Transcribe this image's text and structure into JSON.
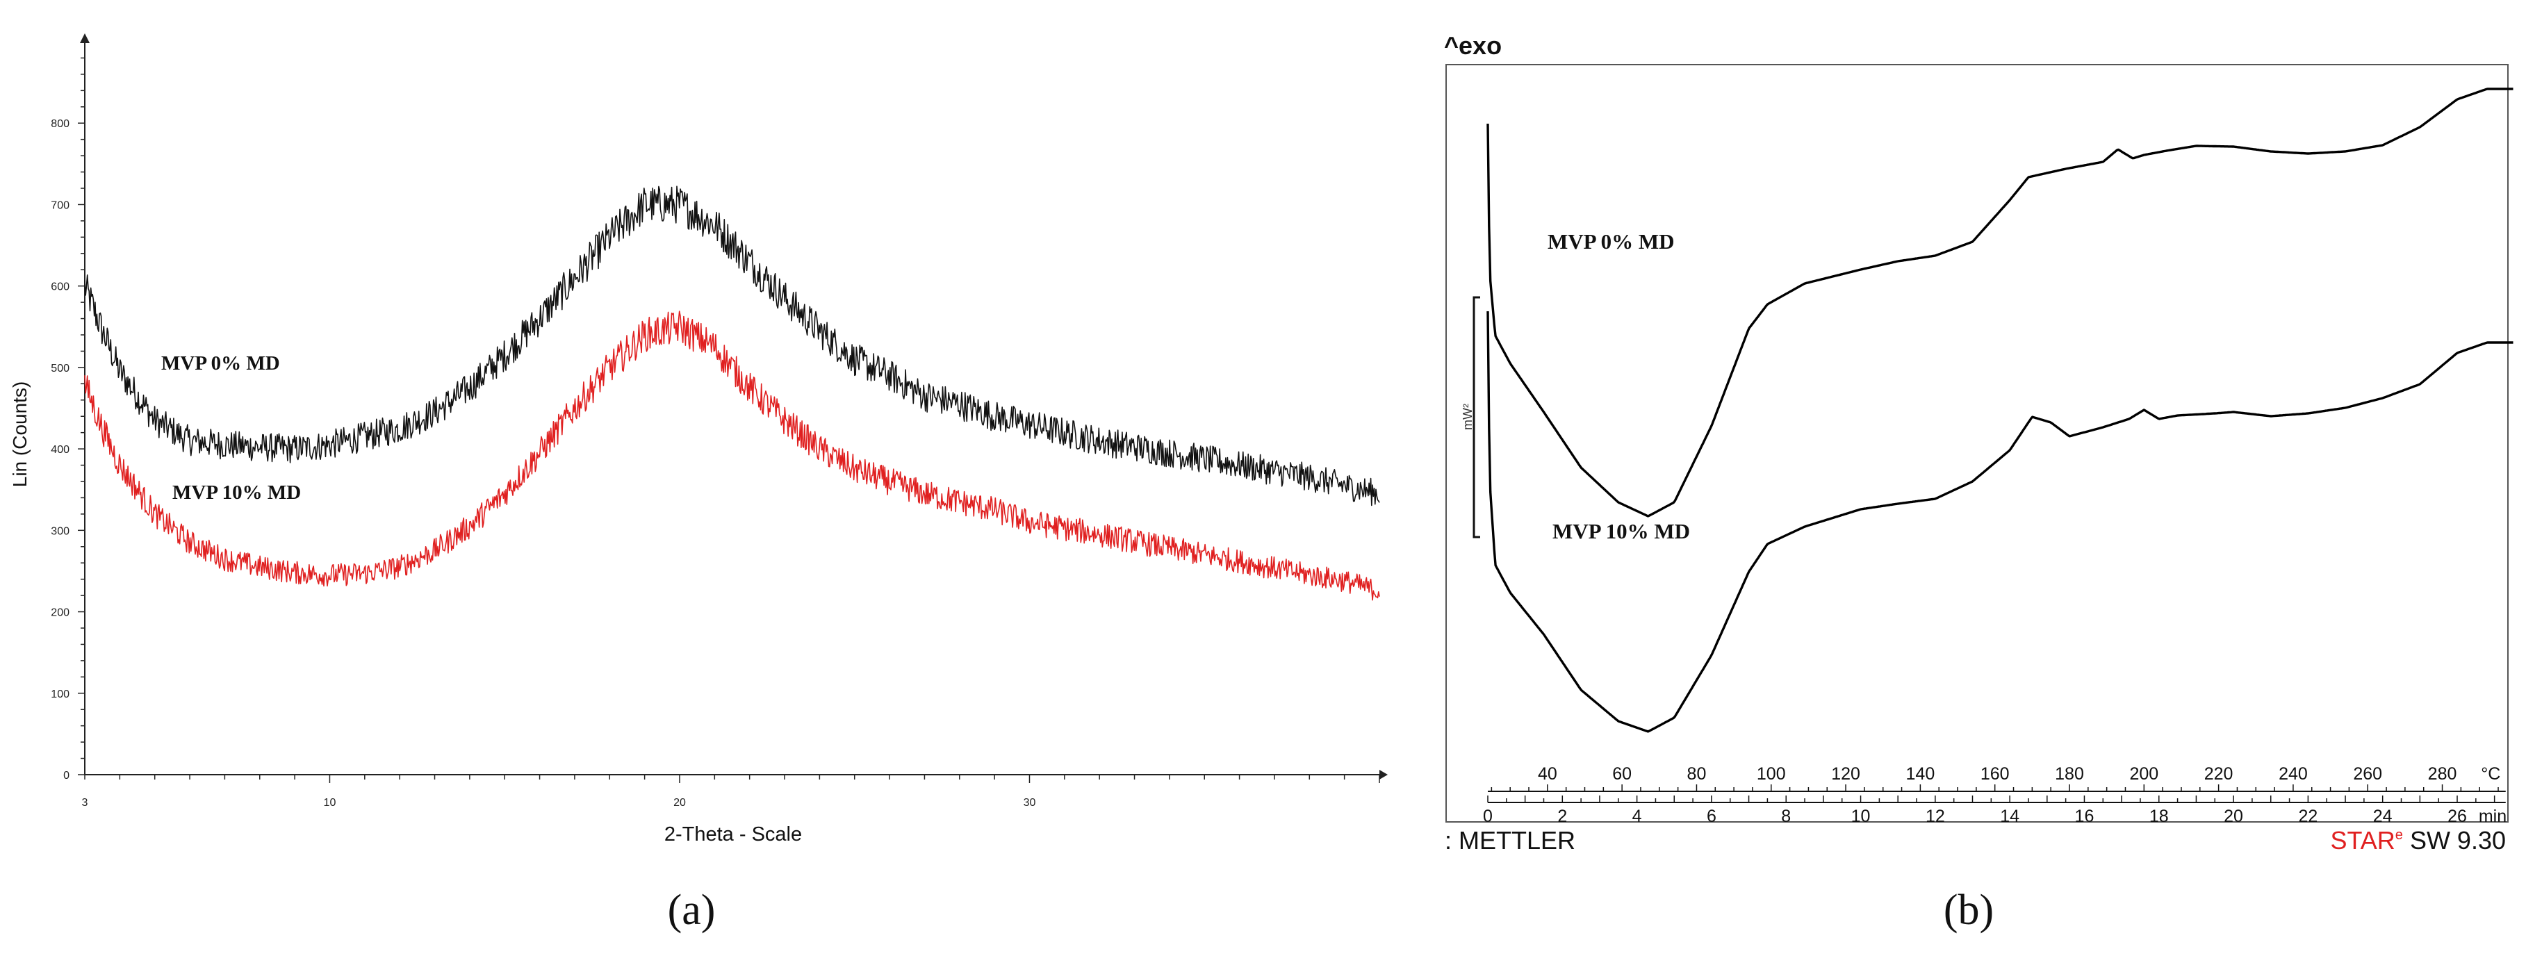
{
  "panels": {
    "a": {
      "caption": "(a)"
    },
    "b": {
      "caption": "(b)"
    }
  },
  "colors": {
    "black_series": "#111111",
    "red_series": "#e02020",
    "axis": "#222222",
    "frame": "#555555"
  },
  "chart_data": [
    {
      "panel": "a",
      "type": "line",
      "xlabel": "2-Theta - Scale",
      "ylabel": "Lin (Counts)",
      "xlim": [
        3,
        40
      ],
      "ylim": [
        0,
        900
      ],
      "xticks": [
        3,
        10,
        20,
        30
      ],
      "yticks": [
        0,
        100,
        200,
        300,
        400,
        500,
        600,
        700,
        800
      ],
      "series_labels": [
        "MVP 0% MD",
        "MVP 10% MD"
      ],
      "series": [
        {
          "name": "MVP 0% MD",
          "color": "#111111",
          "points": [
            [
              3,
              600
            ],
            [
              3.5,
              545
            ],
            [
              4,
              495
            ],
            [
              5,
              435
            ],
            [
              6,
              410
            ],
            [
              7,
              405
            ],
            [
              8,
              402
            ],
            [
              9,
              400
            ],
            [
              10,
              405
            ],
            [
              11,
              415
            ],
            [
              12,
              425
            ],
            [
              13,
              445
            ],
            [
              14,
              475
            ],
            [
              15,
              515
            ],
            [
              16,
              560
            ],
            [
              17,
              610
            ],
            [
              18,
              660
            ],
            [
              19,
              700
            ],
            [
              20,
              700
            ],
            [
              21,
              675
            ],
            [
              22,
              630
            ],
            [
              23,
              585
            ],
            [
              24,
              545
            ],
            [
              25,
              510
            ],
            [
              26,
              490
            ],
            [
              27,
              465
            ],
            [
              28,
              455
            ],
            [
              29,
              440
            ],
            [
              30,
              430
            ],
            [
              32,
              410
            ],
            [
              34,
              395
            ],
            [
              36,
              380
            ],
            [
              38,
              365
            ],
            [
              39,
              355
            ],
            [
              40,
              345
            ]
          ]
        },
        {
          "name": "MVP 10% MD",
          "color": "#e02020",
          "points": [
            [
              3,
              480
            ],
            [
              3.5,
              425
            ],
            [
              4,
              380
            ],
            [
              5,
              320
            ],
            [
              6,
              285
            ],
            [
              7,
              265
            ],
            [
              8,
              255
            ],
            [
              9,
              248
            ],
            [
              10,
              245
            ],
            [
              11,
              247
            ],
            [
              12,
              255
            ],
            [
              13,
              275
            ],
            [
              14,
              305
            ],
            [
              15,
              345
            ],
            [
              16,
              395
            ],
            [
              17,
              450
            ],
            [
              18,
              500
            ],
            [
              19,
              540
            ],
            [
              20,
              550
            ],
            [
              21,
              525
            ],
            [
              22,
              475
            ],
            [
              23,
              435
            ],
            [
              24,
              400
            ],
            [
              25,
              375
            ],
            [
              26,
              360
            ],
            [
              27,
              345
            ],
            [
              28,
              335
            ],
            [
              29,
              325
            ],
            [
              30,
              310
            ],
            [
              32,
              295
            ],
            [
              34,
              278
            ],
            [
              36,
              262
            ],
            [
              38,
              245
            ],
            [
              39,
              238
            ],
            [
              40,
              225
            ]
          ]
        }
      ]
    },
    {
      "panel": "b",
      "type": "line",
      "corner_label": "^exo",
      "scale_bar_label": "mW²",
      "x_temp_ticks": [
        40,
        60,
        80,
        100,
        120,
        140,
        160,
        180,
        200,
        220,
        240,
        260,
        280
      ],
      "x_temp_unit": "°C",
      "x_time_ticks": [
        0,
        2,
        4,
        6,
        8,
        10,
        12,
        14,
        16,
        18,
        20,
        22,
        24,
        26
      ],
      "x_time_unit": "min",
      "xlim_time": [
        0,
        27.5
      ],
      "series_labels": [
        "MVP 0% MD",
        "MVP 10% MD"
      ],
      "series": [
        {
          "name": "MVP 0% MD",
          "color": "#000000",
          "points": [
            [
              0,
              85
            ],
            [
              0.05,
              300
            ],
            [
              0.2,
              390
            ],
            [
              0.6,
              430
            ],
            [
              1.5,
              500
            ],
            [
              2.5,
              580
            ],
            [
              3.5,
              630
            ],
            [
              4.3,
              650
            ],
            [
              5,
              630
            ],
            [
              6,
              520
            ],
            [
              7,
              380
            ],
            [
              7.5,
              345
            ],
            [
              8.5,
              315
            ],
            [
              10,
              295
            ],
            [
              11,
              283
            ],
            [
              12,
              275
            ],
            [
              13,
              255
            ],
            [
              14,
              195
            ],
            [
              14.5,
              162
            ],
            [
              15.5,
              150
            ],
            [
              16.5,
              140
            ],
            [
              16.9,
              122
            ],
            [
              17.3,
              135
            ],
            [
              17.6,
              130
            ],
            [
              18.2,
              124
            ],
            [
              19,
              117
            ],
            [
              20,
              118
            ],
            [
              21,
              125
            ],
            [
              22,
              128
            ],
            [
              23,
              125
            ],
            [
              24,
              116
            ],
            [
              25,
              90
            ],
            [
              26,
              50
            ],
            [
              26.8,
              35
            ],
            [
              27.5,
              35
            ]
          ]
        },
        {
          "name": "MVP 10% MD",
          "color": "#000000",
          "points": [
            [
              0,
              355
            ],
            [
              0.05,
              600
            ],
            [
              0.2,
              720
            ],
            [
              0.6,
              760
            ],
            [
              1.5,
              820
            ],
            [
              2.5,
              900
            ],
            [
              3.5,
              945
            ],
            [
              4.3,
              960
            ],
            [
              5,
              940
            ],
            [
              6,
              850
            ],
            [
              7,
              730
            ],
            [
              7.5,
              690
            ],
            [
              8.5,
              665
            ],
            [
              10,
              640
            ],
            [
              11,
              632
            ],
            [
              12,
              625
            ],
            [
              13,
              600
            ],
            [
              14,
              555
            ],
            [
              14.6,
              507
            ],
            [
              15.1,
              515
            ],
            [
              15.6,
              535
            ],
            [
              16.5,
              522
            ],
            [
              17.2,
              510
            ],
            [
              17.6,
              497
            ],
            [
              18,
              510
            ],
            [
              18.5,
              505
            ],
            [
              19.5,
              502
            ],
            [
              20,
              500
            ],
            [
              21,
              506
            ],
            [
              22,
              502
            ],
            [
              23,
              494
            ],
            [
              24,
              480
            ],
            [
              25,
              460
            ],
            [
              26,
              415
            ],
            [
              26.8,
              400
            ],
            [
              27.5,
              400
            ]
          ]
        }
      ],
      "footer_left": ": METTLER",
      "footer_right_brand": [
        "S",
        "TAR",
        "e"
      ],
      "footer_right_version": "SW 9.30"
    }
  ]
}
